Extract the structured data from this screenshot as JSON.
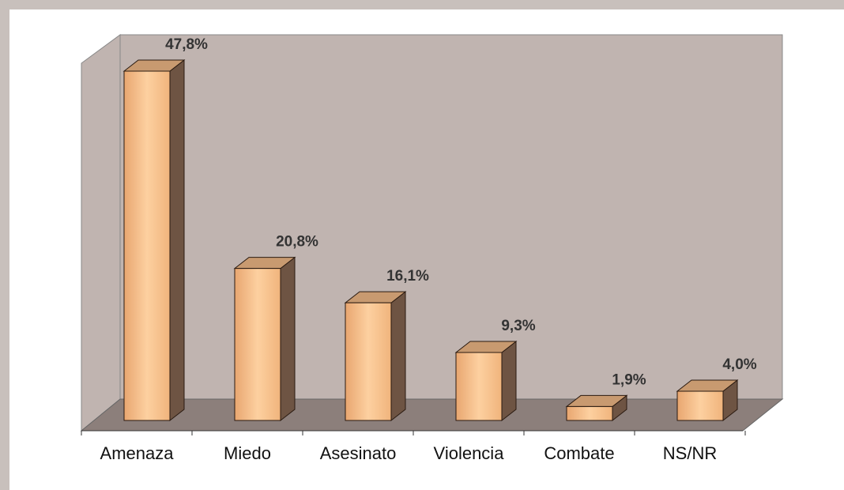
{
  "chart_data": {
    "type": "bar",
    "categories": [
      "Amenaza",
      "Miedo",
      "Asesinato",
      "Violencia",
      "Combate",
      "NS/NR"
    ],
    "values": [
      47.8,
      20.8,
      16.1,
      9.3,
      1.9,
      4.0
    ],
    "value_labels": [
      "47,8%",
      "20,8%",
      "16,1%",
      "9,3%",
      "1,9%",
      "4,0%"
    ],
    "color": "#f5b880"
  }
}
